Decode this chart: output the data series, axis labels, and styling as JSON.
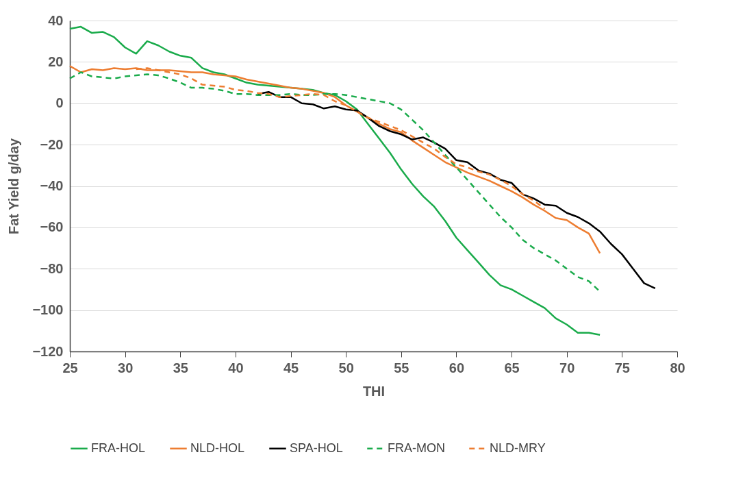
{
  "chart_data": {
    "type": "line",
    "xlabel": "THI",
    "ylabel": "Fat Yield g/day",
    "xlim": [
      25,
      80
    ],
    "xticks": [
      25,
      30,
      35,
      40,
      45,
      50,
      55,
      60,
      65,
      70,
      75,
      80
    ],
    "ylim": [
      -120,
      40
    ],
    "yticks": [
      -120,
      -100,
      -80,
      -60,
      -40,
      -20,
      0,
      20,
      40
    ],
    "grid": "y",
    "legend": "bottom",
    "series": [
      {
        "name": "FRA-HOL",
        "color": "#1aab4b",
        "line_style": "solid",
        "x": [
          25,
          26,
          27,
          28,
          29,
          30,
          31,
          32,
          33,
          34,
          35,
          36,
          37,
          38,
          39,
          40,
          41,
          42,
          43,
          44,
          45,
          46,
          47,
          48,
          49,
          50,
          51,
          52,
          53,
          54,
          55,
          56,
          57,
          58,
          59,
          60,
          61,
          62,
          63,
          64,
          65,
          66,
          67,
          68,
          69,
          70,
          71,
          72,
          73
        ],
        "values": [
          36,
          37,
          34,
          34.5,
          32,
          27,
          24,
          30,
          28,
          25,
          23,
          22,
          17,
          15,
          14,
          12,
          10,
          9,
          8.5,
          8,
          7.5,
          7,
          6.5,
          5,
          4,
          1,
          -3,
          -10,
          -17,
          -24,
          -32,
          -39,
          -45,
          -50,
          -57,
          -65,
          -71,
          -77,
          -83,
          -88,
          -90,
          -93,
          -96,
          -99,
          -104,
          -107,
          -111,
          -111,
          -112
        ]
      },
      {
        "name": "NLD-HOL",
        "color": "#ed7d31",
        "line_style": "solid",
        "x": [
          25,
          26,
          27,
          28,
          29,
          30,
          31,
          32,
          33,
          34,
          35,
          36,
          37,
          38,
          39,
          40,
          41,
          42,
          43,
          44,
          45,
          46,
          47,
          48,
          49,
          50,
          51,
          52,
          53,
          54,
          55,
          56,
          57,
          58,
          59,
          60,
          61,
          62,
          63,
          64,
          65,
          66,
          67,
          68,
          69,
          70,
          71,
          72,
          73
        ],
        "values": [
          18,
          15,
          16.5,
          16,
          17,
          16.5,
          17,
          16,
          16,
          16,
          15.5,
          15,
          15,
          14,
          13.5,
          13,
          11.5,
          10.5,
          9.5,
          8.5,
          7.5,
          7,
          6,
          5,
          3,
          -1,
          -4,
          -7,
          -10,
          -12.5,
          -14,
          -18,
          -21.5,
          -25,
          -28.5,
          -31,
          -33.5,
          -35.5,
          -37.5,
          -40,
          -42.5,
          -45.5,
          -49,
          -52,
          -55.5,
          -56.5,
          -60,
          -63,
          -72.5
        ]
      },
      {
        "name": "SPA-HOL",
        "color": "#000000",
        "line_style": "solid",
        "x": [
          42,
          43,
          44,
          45,
          46,
          47,
          48,
          49,
          50,
          51,
          52,
          53,
          54,
          55,
          56,
          57,
          58,
          59,
          60,
          61,
          62,
          63,
          64,
          65,
          66,
          67,
          68,
          69,
          70,
          71,
          72,
          73,
          74,
          75,
          76,
          77,
          78
        ],
        "values": [
          4.5,
          5.5,
          3,
          3,
          0,
          -0.5,
          -2.5,
          -1.5,
          -3,
          -3.5,
          -7,
          -11,
          -13.5,
          -15,
          -17.5,
          -16.5,
          -19,
          -22,
          -27.5,
          -28.5,
          -32.5,
          -34,
          -37,
          -38.5,
          -44,
          -46,
          -49,
          -49.5,
          -53,
          -55,
          -58,
          -62,
          -68,
          -73,
          -80,
          -87,
          -89.5
        ]
      },
      {
        "name": "FRA-MON",
        "color": "#1aab4b",
        "line_style": "dashed",
        "x": [
          25,
          26,
          27,
          28,
          29,
          30,
          31,
          32,
          33,
          34,
          35,
          36,
          37,
          38,
          39,
          40,
          41,
          42,
          43,
          44,
          45,
          46,
          47,
          48,
          49,
          50,
          51,
          52,
          53,
          54,
          55,
          56,
          57,
          58,
          59,
          60,
          61,
          62,
          63,
          64,
          65,
          66,
          67,
          68,
          69,
          70,
          71,
          72,
          73
        ],
        "values": [
          12,
          15,
          13,
          12.5,
          12,
          13,
          13.5,
          14,
          13.5,
          12,
          10,
          7.5,
          7.5,
          7,
          6,
          4.5,
          4.5,
          4,
          4,
          4,
          4.5,
          4,
          4,
          4.5,
          4.5,
          4,
          3,
          2,
          1,
          0,
          -3,
          -8,
          -13,
          -19,
          -25,
          -31,
          -37,
          -43,
          -49,
          -55,
          -60,
          -66,
          -70,
          -73,
          -76,
          -80,
          -84,
          -86,
          -91
        ]
      },
      {
        "name": "NLD-MRY",
        "color": "#ed7d31",
        "line_style": "dashed",
        "x": [
          31,
          32,
          33,
          34,
          35,
          36,
          37,
          38,
          39,
          40,
          41,
          42,
          43,
          44,
          45,
          46,
          47,
          48,
          49,
          50,
          51,
          52,
          53,
          54,
          55,
          56,
          57,
          58,
          59,
          60,
          61,
          62,
          63,
          64,
          65,
          66,
          67,
          68
        ],
        "values": [
          16.5,
          17,
          16,
          15,
          14,
          12,
          9,
          8.5,
          8,
          6.5,
          6,
          5,
          4.5,
          3,
          3.5,
          4,
          4.5,
          4,
          1,
          -1,
          -4,
          -7,
          -9,
          -11,
          -13,
          -16,
          -19,
          -22,
          -26,
          -29.5,
          -31,
          -33,
          -34.5,
          -37,
          -40,
          -44,
          -47,
          -51
        ]
      }
    ]
  }
}
